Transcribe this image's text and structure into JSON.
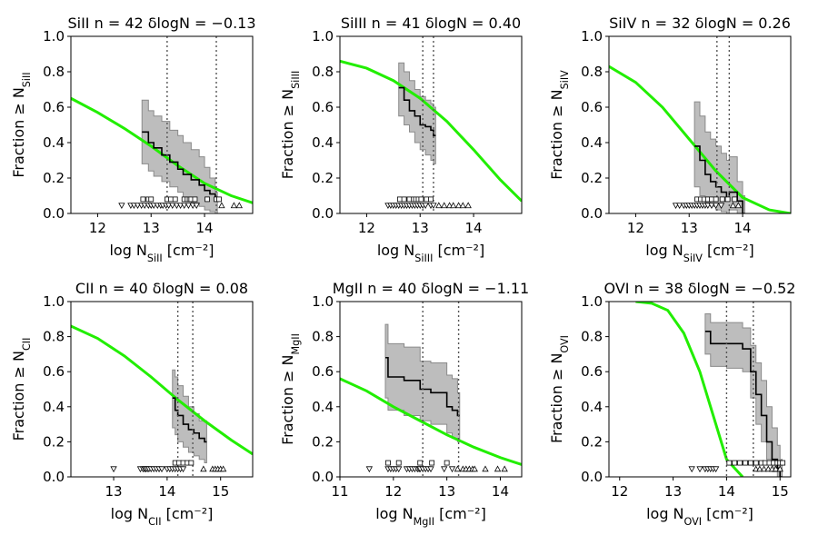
{
  "chart_data": [
    {
      "type": "step",
      "ion": "SiII",
      "title": "SiII n = 42 δlogN = −0.13",
      "xlabel": "log N_SiII [cm⁻²]",
      "ylabel": "Fraction ≥ N_SiII",
      "xlim": [
        11.5,
        14.9
      ],
      "ylim": [
        0,
        1
      ],
      "xticks": [
        12,
        13,
        14
      ],
      "yticks": [
        0.0,
        0.2,
        0.4,
        0.6,
        0.8,
        1.0
      ],
      "model_line": {
        "x": [
          11.5,
          12.0,
          12.5,
          13.0,
          13.5,
          14.0,
          14.5,
          14.9
        ],
        "y": [
          0.65,
          0.57,
          0.48,
          0.38,
          0.27,
          0.17,
          0.1,
          0.06
        ]
      },
      "step_median": {
        "x": [
          12.83,
          12.95,
          13.05,
          13.2,
          13.35,
          13.5,
          13.6,
          13.75,
          13.9,
          14.0,
          14.1,
          14.2
        ],
        "y": [
          0.46,
          0.4,
          0.37,
          0.33,
          0.29,
          0.25,
          0.22,
          0.19,
          0.16,
          0.13,
          0.11,
          0.08
        ]
      },
      "band_upper": [
        0.64,
        0.58,
        0.55,
        0.52,
        0.47,
        0.44,
        0.4,
        0.36,
        0.32,
        0.26,
        0.2,
        0.12
      ],
      "band_lower": [
        0.28,
        0.24,
        0.21,
        0.18,
        0.15,
        0.12,
        0.09,
        0.06,
        0.04,
        0.02,
        0.01,
        0.0
      ],
      "vlines": [
        13.3,
        14.22
      ],
      "detections_x": [
        12.85,
        12.95,
        13.0,
        13.3,
        13.37,
        13.45,
        13.62,
        13.68,
        13.72,
        13.75,
        13.82,
        14.05,
        14.22,
        14.27
      ],
      "lower_limits_x": [
        14.32,
        14.55,
        14.65
      ],
      "upper_limits_x": [
        12.45,
        12.62,
        12.68,
        12.75,
        12.82,
        12.88,
        12.95,
        13.0,
        13.05,
        13.12,
        13.18,
        13.22,
        13.28,
        13.33,
        13.4,
        13.48,
        13.55,
        13.62,
        13.7,
        13.78,
        13.85
      ]
    },
    {
      "type": "step",
      "ion": "SiIII",
      "title": "SiIII n = 41 δlogN = 0.40",
      "xlabel": "log N_SiIII [cm⁻²]",
      "ylabel": "Fraction ≥ N_SiIII",
      "xlim": [
        11.5,
        14.9
      ],
      "ylim": [
        0,
        1
      ],
      "xticks": [
        12,
        13,
        14
      ],
      "yticks": [
        0.0,
        0.2,
        0.4,
        0.6,
        0.8,
        1.0
      ],
      "model_line": {
        "x": [
          11.5,
          12.0,
          12.5,
          13.0,
          13.5,
          14.0,
          14.5,
          14.9
        ],
        "y": [
          0.86,
          0.82,
          0.75,
          0.65,
          0.52,
          0.36,
          0.19,
          0.07
        ]
      },
      "step_median": {
        "x": [
          12.6,
          12.7,
          12.8,
          12.9,
          13.0,
          13.1,
          13.2,
          13.25
        ],
        "y": [
          0.71,
          0.64,
          0.58,
          0.55,
          0.5,
          0.49,
          0.47,
          0.44
        ]
      },
      "band_upper": [
        0.85,
        0.8,
        0.75,
        0.7,
        0.66,
        0.64,
        0.62,
        0.6
      ],
      "band_lower": [
        0.55,
        0.5,
        0.46,
        0.4,
        0.36,
        0.33,
        0.3,
        0.28
      ],
      "vlines": [
        13.05,
        13.25
      ],
      "detections_x": [
        12.62,
        12.7,
        12.8,
        12.88,
        12.92,
        12.97,
        13.02,
        13.12,
        13.2
      ],
      "lower_limits_x": [
        13.35,
        13.45,
        13.55,
        13.62,
        13.72,
        13.8,
        13.9
      ],
      "upper_limits_x": [
        12.4,
        12.45,
        12.5,
        12.55,
        12.6,
        12.65,
        12.7,
        12.75,
        12.8,
        12.85,
        12.9,
        12.95,
        13.0,
        13.05,
        13.1,
        13.2,
        13.25
      ]
    },
    {
      "type": "step",
      "ion": "SiIV",
      "title": "SiIV n = 32 δlogN = 0.26",
      "xlabel": "log N_SiIV [cm⁻²]",
      "ylabel": "Fraction ≥ N_SiIV",
      "xlim": [
        11.5,
        14.9
      ],
      "ylim": [
        0,
        1
      ],
      "xticks": [
        12,
        13,
        14
      ],
      "yticks": [
        0.0,
        0.2,
        0.4,
        0.6,
        0.8,
        1.0
      ],
      "model_line": {
        "x": [
          11.5,
          12.0,
          12.5,
          13.0,
          13.5,
          14.0,
          14.5,
          14.9
        ],
        "y": [
          0.83,
          0.74,
          0.6,
          0.42,
          0.24,
          0.09,
          0.02,
          0.0
        ]
      },
      "step_median": {
        "x": [
          13.1,
          13.2,
          13.3,
          13.4,
          13.5,
          13.6,
          13.7,
          13.75,
          13.9,
          14.0
        ],
        "y": [
          0.38,
          0.3,
          0.22,
          0.18,
          0.15,
          0.12,
          0.09,
          0.12,
          0.07,
          0.0
        ]
      },
      "band_upper": [
        0.63,
        0.55,
        0.46,
        0.42,
        0.38,
        0.34,
        0.3,
        0.32,
        0.18,
        0.1
      ],
      "band_lower": [
        0.15,
        0.1,
        0.06,
        0.04,
        0.02,
        0.01,
        0.0,
        0.02,
        0.0,
        0.0
      ],
      "vlines": [
        13.52,
        13.75
      ],
      "detections_x": [
        13.15,
        13.22,
        13.28,
        13.35,
        13.42,
        13.5,
        13.62,
        13.72,
        13.85
      ],
      "lower_limits_x": [
        13.82,
        13.92
      ],
      "upper_limits_x": [
        12.75,
        12.82,
        12.9,
        12.95,
        13.0,
        13.05,
        13.1,
        13.15,
        13.2,
        13.25,
        13.3,
        13.35,
        13.42,
        13.5,
        13.6
      ]
    },
    {
      "type": "step",
      "ion": "CII",
      "title": "CII n = 40 δlogN = 0.08",
      "xlabel": "log N_CII [cm⁻²]",
      "ylabel": "Fraction ≥ N_CII",
      "xlim": [
        12.2,
        15.6
      ],
      "ylim": [
        0,
        1
      ],
      "xticks": [
        13,
        14,
        15
      ],
      "yticks": [
        0.0,
        0.2,
        0.4,
        0.6,
        0.8,
        1.0
      ],
      "model_line": {
        "x": [
          12.2,
          12.7,
          13.2,
          13.7,
          14.2,
          14.7,
          15.2,
          15.6
        ],
        "y": [
          0.86,
          0.79,
          0.69,
          0.57,
          0.44,
          0.32,
          0.21,
          0.13
        ]
      },
      "step_median": {
        "x": [
          14.1,
          14.15,
          14.2,
          14.3,
          14.4,
          14.5,
          14.6,
          14.7
        ],
        "y": [
          0.45,
          0.38,
          0.35,
          0.3,
          0.27,
          0.25,
          0.22,
          0.2
        ]
      },
      "band_upper": [
        0.61,
        0.57,
        0.52,
        0.46,
        0.4,
        0.36,
        0.32,
        0.32
      ],
      "band_lower": [
        0.28,
        0.24,
        0.2,
        0.17,
        0.14,
        0.12,
        0.1,
        0.08
      ],
      "vlines": [
        14.2,
        14.48
      ],
      "detections_x": [
        14.15,
        14.22,
        14.3,
        14.38,
        14.45
      ],
      "lower_limits_x": [
        14.68,
        14.85,
        14.9,
        14.95,
        15.0,
        15.05
      ],
      "upper_limits_x": [
        13.0,
        13.5,
        13.55,
        13.58,
        13.6,
        13.63,
        13.66,
        13.7,
        13.75,
        13.8,
        13.85,
        13.9,
        14.0,
        14.05,
        14.1,
        14.15,
        14.2,
        14.25,
        14.3
      ]
    },
    {
      "type": "step",
      "ion": "MgII",
      "title": "MgII n = 40 δlogN = −1.11",
      "xlabel": "log N_MgII [cm⁻²]",
      "ylabel": "Fraction ≥ N_MgII",
      "xlim": [
        11.0,
        14.4
      ],
      "ylim": [
        0,
        1
      ],
      "xticks": [
        11,
        12,
        13,
        14
      ],
      "yticks": [
        0.0,
        0.2,
        0.4,
        0.6,
        0.8,
        1.0
      ],
      "model_line": {
        "x": [
          11.0,
          11.5,
          12.0,
          12.5,
          13.0,
          13.5,
          14.0,
          14.4
        ],
        "y": [
          0.56,
          0.49,
          0.4,
          0.32,
          0.24,
          0.17,
          0.11,
          0.07
        ]
      },
      "step_median": {
        "x": [
          11.85,
          11.9,
          12.2,
          12.5,
          12.7,
          13.0,
          13.1,
          13.2
        ],
        "y": [
          0.68,
          0.57,
          0.55,
          0.5,
          0.48,
          0.4,
          0.38,
          0.35
        ]
      },
      "band_upper": [
        0.87,
        0.76,
        0.74,
        0.66,
        0.65,
        0.58,
        0.56,
        0.48
      ],
      "band_lower": [
        0.45,
        0.38,
        0.35,
        0.32,
        0.3,
        0.25,
        0.22,
        0.2
      ],
      "vlines": [
        12.55,
        13.22
      ],
      "detections_x": [
        11.9,
        12.1,
        12.5,
        12.72,
        13.0
      ],
      "lower_limits_x": [
        13.2,
        13.3,
        13.36,
        13.42,
        13.48,
        13.52,
        13.72,
        13.95,
        14.08
      ],
      "upper_limits_x": [
        11.55,
        11.9,
        11.95,
        12.0,
        12.05,
        12.1,
        12.25,
        12.3,
        12.35,
        12.4,
        12.45,
        12.48,
        12.5,
        12.55,
        12.6,
        12.65,
        12.7,
        12.95,
        13.1
      ]
    },
    {
      "type": "step",
      "ion": "OVI",
      "title": "OVI n = 38 δlogN = −0.52",
      "xlabel": "log N_OVI [cm⁻²]",
      "ylabel": "Fraction ≥ N_OVI",
      "xlim": [
        11.8,
        15.2
      ],
      "ylim": [
        0,
        1
      ],
      "xticks": [
        12,
        13,
        14,
        15
      ],
      "yticks": [
        0.0,
        0.2,
        0.4,
        0.6,
        0.8,
        1.0
      ],
      "model_line": {
        "x": [
          12.3,
          12.6,
          12.9,
          13.2,
          13.5,
          13.8,
          14.0,
          14.3
        ],
        "y": [
          1.0,
          0.99,
          0.95,
          0.82,
          0.6,
          0.3,
          0.1,
          0.0
        ]
      },
      "step_median": {
        "x": [
          13.6,
          13.7,
          14.0,
          14.3,
          14.45,
          14.55,
          14.65,
          14.75,
          14.85,
          14.95,
          15.0
        ],
        "y": [
          0.83,
          0.76,
          0.76,
          0.73,
          0.6,
          0.47,
          0.35,
          0.2,
          0.1,
          0.05,
          0.0
        ]
      },
      "band_upper": [
        0.93,
        0.88,
        0.88,
        0.85,
        0.75,
        0.65,
        0.55,
        0.4,
        0.28,
        0.18,
        0.1
      ],
      "band_lower": [
        0.7,
        0.63,
        0.62,
        0.6,
        0.45,
        0.3,
        0.2,
        0.1,
        0.03,
        0.0,
        0.0
      ],
      "vlines": [
        14.0,
        14.5
      ],
      "detections_x": [
        14.05,
        14.15,
        14.25,
        14.35,
        14.45,
        14.55,
        14.65,
        14.72,
        14.8,
        14.88,
        14.95,
        15.0,
        15.05
      ],
      "lower_limits_x": [
        14.55,
        14.62,
        14.7,
        14.78,
        14.85,
        14.92,
        15.0
      ],
      "upper_limits_x": [
        13.35,
        13.5,
        13.6,
        13.65,
        13.7,
        13.75,
        13.8
      ]
    }
  ],
  "colors": {
    "model": "#22ee00",
    "band_fill": "#bdbdbd",
    "band_edge": "#8a8a8a",
    "median": "#000000",
    "vline": "#555555"
  }
}
